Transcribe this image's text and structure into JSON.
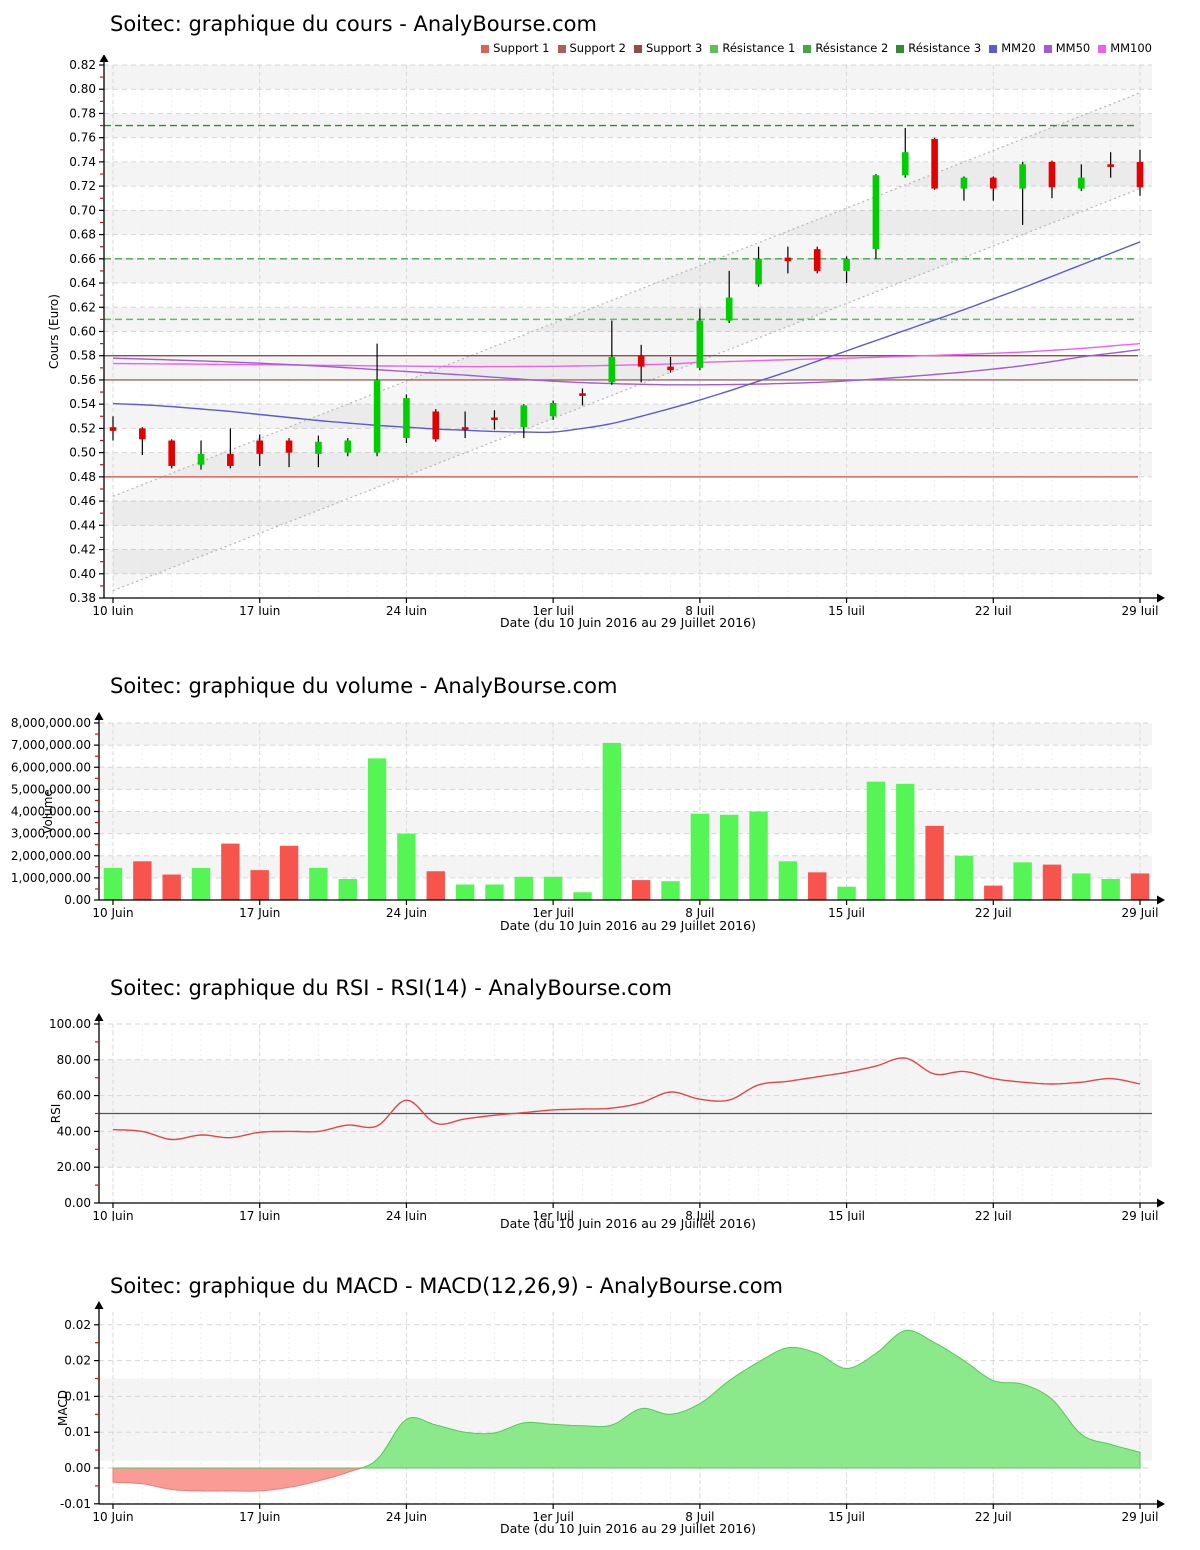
{
  "chart_data": [
    {
      "id": "price",
      "type": "candlestick",
      "title": "Soitec: graphique du cours - AnalyBourse.com",
      "ylabel": "Cours (Euro)",
      "xlabel": "Date (du 10 Juin 2016 au 29 Juillet 2016)",
      "ylim": [
        0.38,
        0.82
      ],
      "ytick_step": 0.02,
      "xticks": [
        {
          "i": 0,
          "label": "10 Juin"
        },
        {
          "i": 5,
          "label": "17 Juin"
        },
        {
          "i": 10,
          "label": "24 Juin"
        },
        {
          "i": 15,
          "label": "1er Juil"
        },
        {
          "i": 20,
          "label": "8 Juil"
        },
        {
          "i": 25,
          "label": "15 Juil"
        },
        {
          "i": 30,
          "label": "22 Juil"
        },
        {
          "i": 35,
          "label": "29 Juil"
        }
      ],
      "dates": [
        "10 Juin",
        "13 Juin",
        "14 Juin",
        "15 Juin",
        "16 Juin",
        "17 Juin",
        "20 Juin",
        "21 Juin",
        "22 Juin",
        "23 Juin",
        "24 Juin",
        "27 Juin",
        "28 Juin",
        "29 Juin",
        "30 Juin",
        "1er Juil",
        "4 Juil",
        "5 Juil",
        "6 Juil",
        "7 Juil",
        "8 Juil",
        "11 Juil",
        "12 Juil",
        "13 Juil",
        "14 Juil",
        "15 Juil",
        "18 Juil",
        "19 Juil",
        "20 Juil",
        "21 Juil",
        "22 Juil",
        "25 Juil",
        "26 Juil",
        "27 Juil",
        "28 Juil",
        "29 Juil"
      ],
      "ohlc": [
        [
          0.521,
          0.53,
          0.51,
          0.518
        ],
        [
          0.52,
          0.521,
          0.498,
          0.511
        ],
        [
          0.51,
          0.511,
          0.487,
          0.489
        ],
        [
          0.49,
          0.51,
          0.486,
          0.499
        ],
        [
          0.499,
          0.52,
          0.487,
          0.489
        ],
        [
          0.51,
          0.515,
          0.489,
          0.499
        ],
        [
          0.51,
          0.512,
          0.488,
          0.5
        ],
        [
          0.499,
          0.514,
          0.488,
          0.509
        ],
        [
          0.5,
          0.512,
          0.497,
          0.51
        ],
        [
          0.5,
          0.59,
          0.497,
          0.56
        ],
        [
          0.512,
          0.548,
          0.508,
          0.545
        ],
        [
          0.534,
          0.536,
          0.509,
          0.511
        ],
        [
          0.521,
          0.534,
          0.512,
          0.519
        ],
        [
          0.529,
          0.535,
          0.519,
          0.527
        ],
        [
          0.521,
          0.54,
          0.512,
          0.539
        ],
        [
          0.53,
          0.543,
          0.527,
          0.541
        ],
        [
          0.549,
          0.553,
          0.539,
          0.547
        ],
        [
          0.558,
          0.609,
          0.556,
          0.579
        ],
        [
          0.58,
          0.589,
          0.558,
          0.571
        ],
        [
          0.571,
          0.579,
          0.566,
          0.568
        ],
        [
          0.57,
          0.619,
          0.568,
          0.609
        ],
        [
          0.609,
          0.65,
          0.607,
          0.628
        ],
        [
          0.639,
          0.67,
          0.637,
          0.66
        ],
        [
          0.661,
          0.67,
          0.648,
          0.658
        ],
        [
          0.668,
          0.67,
          0.648,
          0.65
        ],
        [
          0.65,
          0.662,
          0.64,
          0.66
        ],
        [
          0.668,
          0.73,
          0.66,
          0.729
        ],
        [
          0.729,
          0.768,
          0.727,
          0.748
        ],
        [
          0.759,
          0.76,
          0.717,
          0.718
        ],
        [
          0.718,
          0.728,
          0.708,
          0.727
        ],
        [
          0.727,
          0.728,
          0.708,
          0.718
        ],
        [
          0.718,
          0.74,
          0.688,
          0.738
        ],
        [
          0.74,
          0.741,
          0.71,
          0.719
        ],
        [
          0.718,
          0.738,
          0.716,
          0.727
        ],
        [
          0.738,
          0.748,
          0.727,
          0.736
        ],
        [
          0.74,
          0.75,
          0.712,
          0.719
        ]
      ],
      "up_color": "#00CE00",
      "down_color": "#E30000",
      "legend": [
        {
          "label": "Support 1",
          "color": "#D8655C"
        },
        {
          "label": "Support 2",
          "color": "#A8625C"
        },
        {
          "label": "Support 3",
          "color": "#8E4F4B"
        },
        {
          "label": "Résistance 1",
          "color": "#5DBE5D"
        },
        {
          "label": "Résistance 2",
          "color": "#46A546"
        },
        {
          "label": "Résistance 3",
          "color": "#338A33"
        },
        {
          "label": "MM20",
          "color": "#5A5AD2"
        },
        {
          "label": "MM50",
          "color": "#A05CD6"
        },
        {
          "label": "MM100",
          "color": "#EE5FEE"
        }
      ],
      "supports": [
        {
          "label": "Support 1",
          "value": 0.48,
          "color": "#D8655C"
        },
        {
          "label": "Support 2",
          "value": 0.56,
          "color": "#A8625C"
        },
        {
          "label": "Support 3",
          "value": 0.58,
          "color": "#8E4F4B"
        }
      ],
      "resistances": [
        {
          "label": "Résistance 1",
          "value": 0.61,
          "color": "#5DBE5D"
        },
        {
          "label": "Résistance 2",
          "value": 0.66,
          "color": "#46A546"
        },
        {
          "label": "Résistance 3",
          "value": 0.77,
          "color": "#338A33"
        }
      ],
      "mm20": [
        0.5405,
        0.5395,
        0.538,
        0.536,
        0.534,
        0.5315,
        0.529,
        0.5265,
        0.5245,
        0.5225,
        0.521,
        0.5195,
        0.5185,
        0.5175,
        0.517,
        0.517,
        0.52,
        0.524,
        0.53,
        0.5365,
        0.5435,
        0.551,
        0.559,
        0.567,
        0.5755,
        0.584,
        0.5925,
        0.601,
        0.6095,
        0.618,
        0.627,
        0.636,
        0.6455,
        0.655,
        0.6645,
        0.674
      ],
      "mm50": [
        0.578,
        0.5773,
        0.5765,
        0.5757,
        0.5748,
        0.5738,
        0.5727,
        0.5715,
        0.57,
        0.5685,
        0.567,
        0.5655,
        0.564,
        0.5622,
        0.5605,
        0.559,
        0.5578,
        0.557,
        0.5564,
        0.556,
        0.556,
        0.5562,
        0.5566,
        0.5572,
        0.558,
        0.5592,
        0.5608,
        0.5625,
        0.5645,
        0.5665,
        0.569,
        0.5718,
        0.5752,
        0.579,
        0.582,
        0.585
      ],
      "mm100": [
        0.5735,
        0.5734,
        0.5732,
        0.573,
        0.5728,
        0.5726,
        0.5724,
        0.5721,
        0.5719,
        0.5716,
        0.5714,
        0.5712,
        0.571,
        0.571,
        0.5711,
        0.5713,
        0.5716,
        0.572,
        0.5726,
        0.5732,
        0.5745,
        0.5752,
        0.576,
        0.5767,
        0.5774,
        0.578,
        0.5787,
        0.5795,
        0.5803,
        0.5811,
        0.582,
        0.583,
        0.5845,
        0.586,
        0.588,
        0.59
      ],
      "channel": {
        "lower_start": 0.386,
        "lower_end": 0.718,
        "upper_start": 0.464,
        "upper_end": 0.797
      }
    },
    {
      "id": "volume",
      "type": "bar",
      "title": "Soitec: graphique du volume - AnalyBourse.com",
      "ylabel": "Volume",
      "xlabel": "Date (du 10 Juin 2016 au 29 Juillet 2016)",
      "ylim": [
        0,
        8000000
      ],
      "ytick_labels": [
        "0.00",
        "1,000,000.00",
        "2,000,000.00",
        "3,000,000.00",
        "4,000,000.00",
        "5,000,000.00",
        "6,000,000.00",
        "7,000,000.00",
        "8,000,000.00"
      ],
      "values": [
        1450000,
        1750000,
        1150000,
        1450000,
        2550000,
        1350000,
        2450000,
        1450000,
        950000,
        6400000,
        3000000,
        1300000,
        700000,
        700000,
        1050000,
        1050000,
        350000,
        7100000,
        900000,
        850000,
        3900000,
        3850000,
        4000000,
        1750000,
        1250000,
        600000,
        5350000,
        5250000,
        3350000,
        2000000,
        650000,
        1700000,
        1600000,
        1200000,
        950000,
        1200000
      ],
      "direction": [
        "up",
        "down",
        "down",
        "up",
        "down",
        "down",
        "down",
        "up",
        "up",
        "up",
        "up",
        "down",
        "up",
        "up",
        "up",
        "up",
        "up",
        "up",
        "down",
        "up",
        "up",
        "up",
        "up",
        "up",
        "down",
        "up",
        "up",
        "up",
        "down",
        "up",
        "down",
        "up",
        "down",
        "up",
        "up",
        "down"
      ],
      "up_color": "#55F555",
      "down_color": "#F8544E"
    },
    {
      "id": "rsi",
      "type": "line",
      "title": "Soitec: graphique du RSI - RSI(14) - AnalyBourse.com",
      "ylabel": "RSI",
      "xlabel": "Date (du 10 Juin 2016 au 29 Juillet 2016)",
      "ylim": [
        0,
        100
      ],
      "ytick_labels": [
        "0.00",
        "20.00",
        "40.00",
        "60.00",
        "80.00",
        "100.00"
      ],
      "midline": 50,
      "band": [
        20,
        80
      ],
      "line_color": "#E04848",
      "values": [
        41,
        40,
        35.5,
        38,
        36.5,
        39.5,
        40,
        40,
        43.5,
        43,
        57.5,
        44.5,
        47,
        49,
        50.5,
        52,
        52.5,
        53,
        56,
        62,
        58,
        57.5,
        66,
        68,
        70.5,
        73,
        76.5,
        81,
        72,
        73.5,
        69.5,
        67.5,
        66.5,
        67.5,
        69.5,
        66.5
      ]
    },
    {
      "id": "macd",
      "type": "area",
      "title": "Soitec: graphique du MACD - MACD(12,26,9) - AnalyBourse.com",
      "ylabel": "MACD",
      "xlabel": "Date (du 10 Juin 2016 au 29 Juillet 2016)",
      "ylim": [
        -0.005,
        0.0225
      ],
      "ytick_values": [
        -0.005,
        0,
        0.005,
        0.01,
        0.015,
        0.02
      ],
      "ytick_labels": [
        "-0.01",
        "0.00",
        "0.01",
        "0.01",
        "0.02",
        "0.02"
      ],
      "pos_color": "#8BE98B",
      "pos_stroke": "#58C758",
      "neg_color": "#FA9B95",
      "neg_stroke": "#F07B75",
      "values": [
        -0.002,
        -0.0022,
        -0.003,
        -0.0032,
        -0.0032,
        -0.0032,
        -0.0027,
        -0.0018,
        -0.0006,
        0.0012,
        0.0068,
        0.006,
        0.005,
        0.0049,
        0.0063,
        0.0061,
        0.0059,
        0.006,
        0.0083,
        0.0075,
        0.009,
        0.0122,
        0.0148,
        0.0168,
        0.016,
        0.0139,
        0.016,
        0.0192,
        0.0175,
        0.015,
        0.0122,
        0.0117,
        0.0096,
        0.0047,
        0.0033,
        0.0022
      ]
    }
  ]
}
